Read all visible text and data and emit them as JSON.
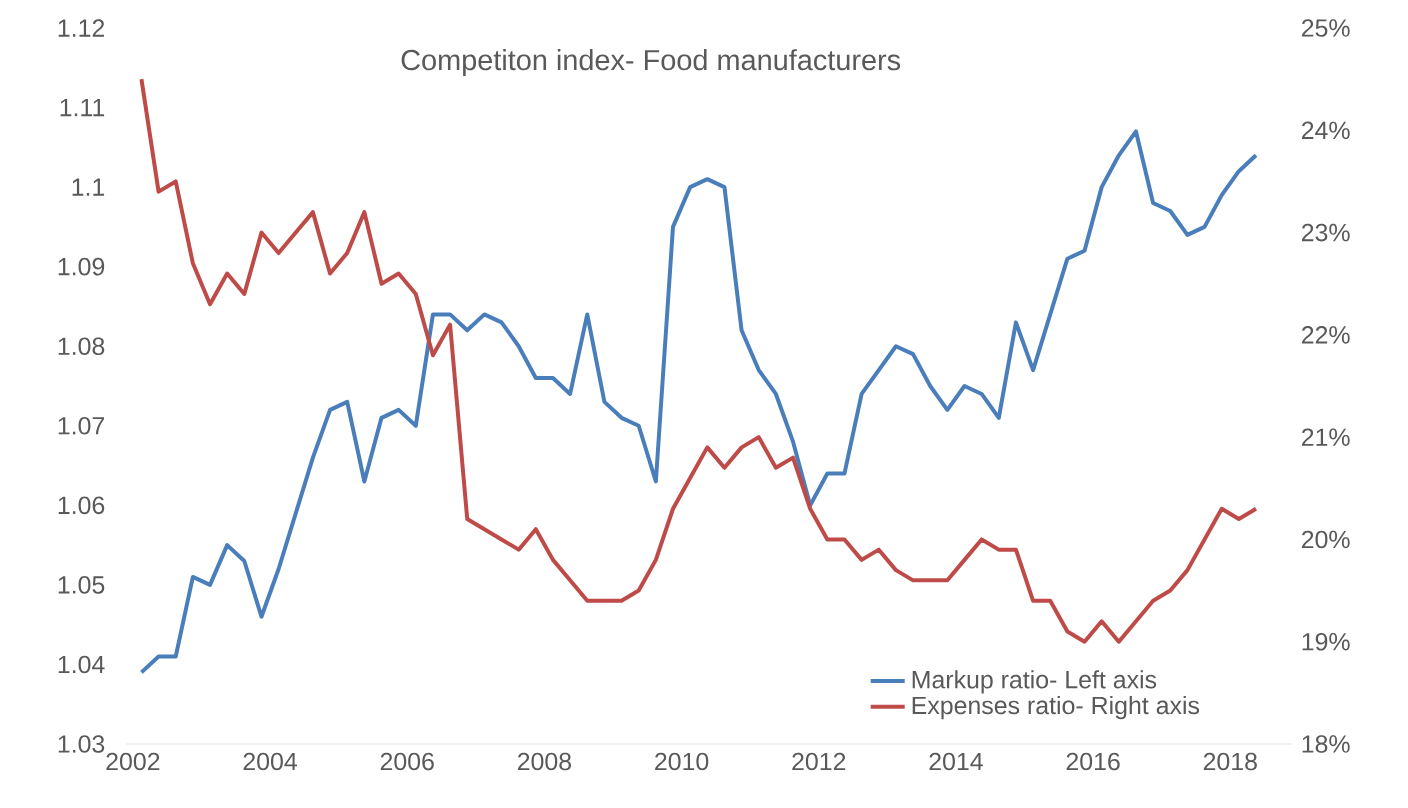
{
  "chart_data": {
    "type": "line",
    "title": "Competiton index- Food manufacturers",
    "x": [
      2002.125,
      2002.375,
      2002.625,
      2002.875,
      2003.125,
      2003.375,
      2003.625,
      2003.875,
      2004.125,
      2004.375,
      2004.625,
      2004.875,
      2005.125,
      2005.375,
      2005.625,
      2005.875,
      2006.125,
      2006.375,
      2006.625,
      2006.875,
      2007.125,
      2007.375,
      2007.625,
      2007.875,
      2008.125,
      2008.375,
      2008.625,
      2008.875,
      2009.125,
      2009.375,
      2009.625,
      2009.875,
      2010.125,
      2010.375,
      2010.625,
      2010.875,
      2011.125,
      2011.375,
      2011.625,
      2011.875,
      2012.125,
      2012.375,
      2012.625,
      2012.875,
      2013.125,
      2013.375,
      2013.625,
      2013.875,
      2014.125,
      2014.375,
      2014.625,
      2014.875,
      2015.125,
      2015.375,
      2015.625,
      2015.875,
      2016.125,
      2016.375,
      2016.625,
      2016.875,
      2017.125,
      2017.375,
      2017.625,
      2017.875,
      2018.125,
      2018.375
    ],
    "series": [
      {
        "name": "Markup ratio- Left axis",
        "color": "#4a7ebb",
        "values": [
          1.039,
          1.041,
          1.041,
          1.051,
          1.05,
          1.055,
          1.053,
          1.046,
          1.052,
          1.059,
          1.066,
          1.072,
          1.073,
          1.063,
          1.071,
          1.072,
          1.07,
          1.084,
          1.084,
          1.082,
          1.084,
          1.083,
          1.08,
          1.076,
          1.076,
          1.074,
          1.084,
          1.073,
          1.071,
          1.07,
          1.063,
          1.095,
          1.1,
          1.101,
          1.1,
          1.082,
          1.077,
          1.074,
          1.068,
          1.06,
          1.064,
          1.064,
          1.074,
          1.077,
          1.08,
          1.079,
          1.075,
          1.072,
          1.075,
          1.074,
          1.071,
          1.083,
          1.077,
          1.084,
          1.091,
          1.092,
          1.1,
          1.104,
          1.107,
          1.098,
          1.097,
          1.094,
          1.095,
          1.099,
          1.102,
          1.104
        ]
      },
      {
        "name": "Expenses ratio- Right axis",
        "color": "#be4b48",
        "axis": "y2",
        "values": [
          24.5,
          23.4,
          23.5,
          22.7,
          22.3,
          22.6,
          22.4,
          23.0,
          22.8,
          23.0,
          23.2,
          22.6,
          22.8,
          23.2,
          22.5,
          22.6,
          22.4,
          21.8,
          22.1,
          20.2,
          20.1,
          20.0,
          19.9,
          20.1,
          19.8,
          19.6,
          19.4,
          19.4,
          19.4,
          19.5,
          19.8,
          20.3,
          20.6,
          20.9,
          20.7,
          20.9,
          21.0,
          20.7,
          20.8,
          20.3,
          20.0,
          20.0,
          19.8,
          19.9,
          19.7,
          19.6,
          19.6,
          19.6,
          19.8,
          20.0,
          19.9,
          19.9,
          19.4,
          19.4,
          19.1,
          19.0,
          19.2,
          19.0,
          19.2,
          19.4,
          19.5,
          19.7,
          20.0,
          20.3,
          20.2,
          20.3
        ]
      }
    ],
    "xlim": [
      2001.9,
      2018.9
    ],
    "xticks": [
      2002,
      2004,
      2006,
      2008,
      2010,
      2012,
      2014,
      2016,
      2018
    ],
    "ylim": [
      1.03,
      1.12
    ],
    "yticks": [
      1.03,
      1.04,
      1.05,
      1.06,
      1.07,
      1.08,
      1.09,
      1.1,
      1.11,
      1.12
    ],
    "y2lim": [
      18,
      25
    ],
    "y2ticks": [
      {
        "value": 18,
        "label": "18%"
      },
      {
        "value": 19,
        "label": "19%"
      },
      {
        "value": 20,
        "label": "20%"
      },
      {
        "value": 21,
        "label": "21%"
      },
      {
        "value": 22,
        "label": "22%"
      },
      {
        "value": 23,
        "label": "23%"
      },
      {
        "value": 24,
        "label": "24%"
      },
      {
        "value": 25,
        "label": "25%"
      }
    ],
    "legend": "bottom right"
  }
}
